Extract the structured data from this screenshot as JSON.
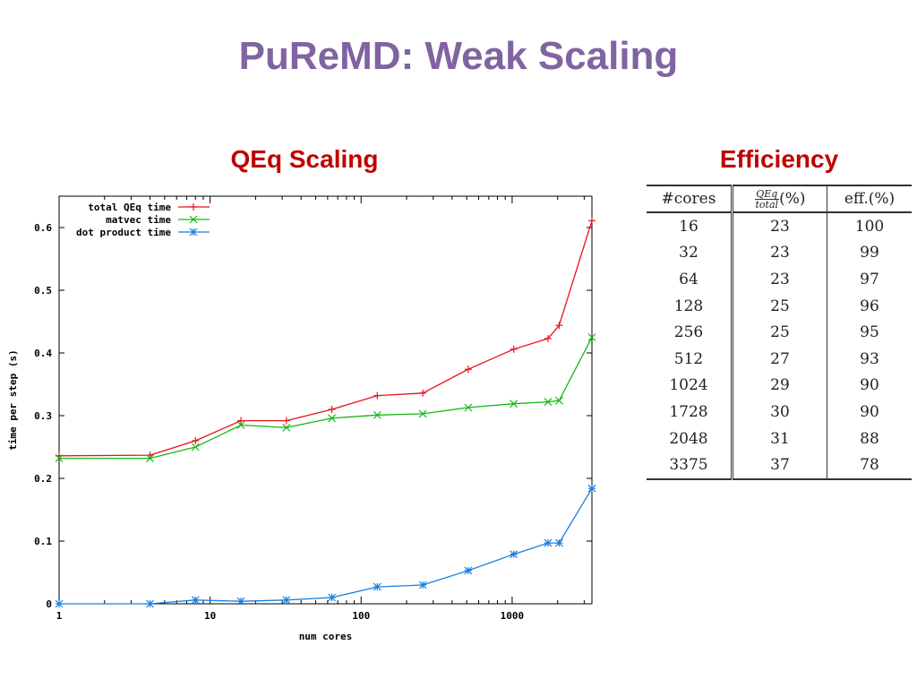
{
  "slide": {
    "title": "PuReMD: Weak Scaling"
  },
  "chart_title": "QEq Scaling",
  "table_title": "Efficiency",
  "chart_data": {
    "type": "line",
    "xscale": "log",
    "xlabel": "num cores",
    "ylabel": "time per step (s)",
    "xlim": [
      1,
      3375
    ],
    "ylim": [
      0,
      0.65
    ],
    "xticks": [
      1,
      10,
      100,
      1000
    ],
    "xtick_labels": [
      "1",
      "10",
      "100",
      "1000"
    ],
    "yticks": [
      0,
      0.1,
      0.2,
      0.3,
      0.4,
      0.5,
      0.6
    ],
    "ytick_labels": [
      "0",
      "0.1",
      "0.2",
      "0.3",
      "0.4",
      "0.5",
      "0.6"
    ],
    "legend_position": "top-left",
    "series": [
      {
        "name": "total QEq time",
        "color": "#e8101a",
        "marker": "plus",
        "x": [
          1,
          4,
          8,
          16,
          32,
          64,
          128,
          256,
          512,
          1024,
          1728,
          2048,
          3375
        ],
        "y": [
          0.236,
          0.237,
          0.26,
          0.292,
          0.292,
          0.31,
          0.332,
          0.336,
          0.374,
          0.406,
          0.423,
          0.444,
          0.611
        ]
      },
      {
        "name": "matvec time",
        "color": "#18b818",
        "marker": "cross",
        "x": [
          1,
          4,
          8,
          16,
          32,
          64,
          128,
          256,
          512,
          1024,
          1728,
          2048,
          3375
        ],
        "y": [
          0.232,
          0.232,
          0.25,
          0.285,
          0.281,
          0.296,
          0.301,
          0.303,
          0.313,
          0.319,
          0.322,
          0.324,
          0.425
        ]
      },
      {
        "name": "dot product time",
        "color": "#1a7fe0",
        "marker": "star",
        "x": [
          1,
          4,
          8,
          16,
          32,
          64,
          128,
          256,
          512,
          1024,
          1728,
          2048,
          3375
        ],
        "y": [
          0.0,
          0.0,
          0.006,
          0.004,
          0.006,
          0.01,
          0.027,
          0.03,
          0.053,
          0.079,
          0.097,
          0.097,
          0.184
        ]
      }
    ]
  },
  "table": {
    "headers": {
      "cores": "#cores",
      "frac_num": "QEq",
      "frac_den": "total",
      "pct": "(%)",
      "eff": "eff.(%)"
    },
    "rows": [
      [
        "16",
        "23",
        "100"
      ],
      [
        "32",
        "23",
        "99"
      ],
      [
        "64",
        "23",
        "97"
      ],
      [
        "128",
        "25",
        "96"
      ],
      [
        "256",
        "25",
        "95"
      ],
      [
        "512",
        "27",
        "93"
      ],
      [
        "1024",
        "29",
        "90"
      ],
      [
        "1728",
        "30",
        "90"
      ],
      [
        "2048",
        "31",
        "88"
      ],
      [
        "3375",
        "37",
        "78"
      ]
    ]
  }
}
